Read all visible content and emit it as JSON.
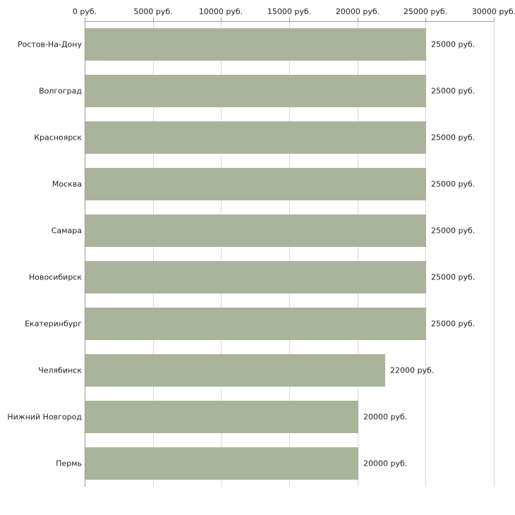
{
  "chart_data": {
    "type": "bar",
    "orientation": "horizontal",
    "title": "",
    "xlabel": "",
    "ylabel": "",
    "categories": [
      "Ростов-На-Дону",
      "Волгоград",
      "Красноярск",
      "Москва",
      "Самара",
      "Новосибирск",
      "Екатеринбург",
      "Челябинск",
      "Нижний Новгород",
      "Пермь"
    ],
    "values": [
      25000,
      25000,
      25000,
      25000,
      25000,
      25000,
      25000,
      22000,
      20000,
      20000
    ],
    "value_labels": [
      "25000 руб.",
      "25000 руб.",
      "25000 руб.",
      "25000 руб.",
      "25000 руб.",
      "25000 руб.",
      "25000 руб.",
      "22000 руб.",
      "20000 руб.",
      "20000 руб."
    ],
    "x_ticks": [
      0,
      5000,
      10000,
      15000,
      20000,
      25000,
      30000
    ],
    "x_tick_labels": [
      "0 руб.",
      "5000 руб.",
      "10000 руб.",
      "15000 руб.",
      "20000 руб.",
      "25000 руб.",
      "30000 руб."
    ],
    "xlim": [
      0,
      30000
    ],
    "grid": true,
    "legend": "none",
    "bar_color": "#a9b49b",
    "grid_color": "#d9d9d9",
    "axis_color": "#9a9a9a",
    "text_color": "#222222"
  }
}
